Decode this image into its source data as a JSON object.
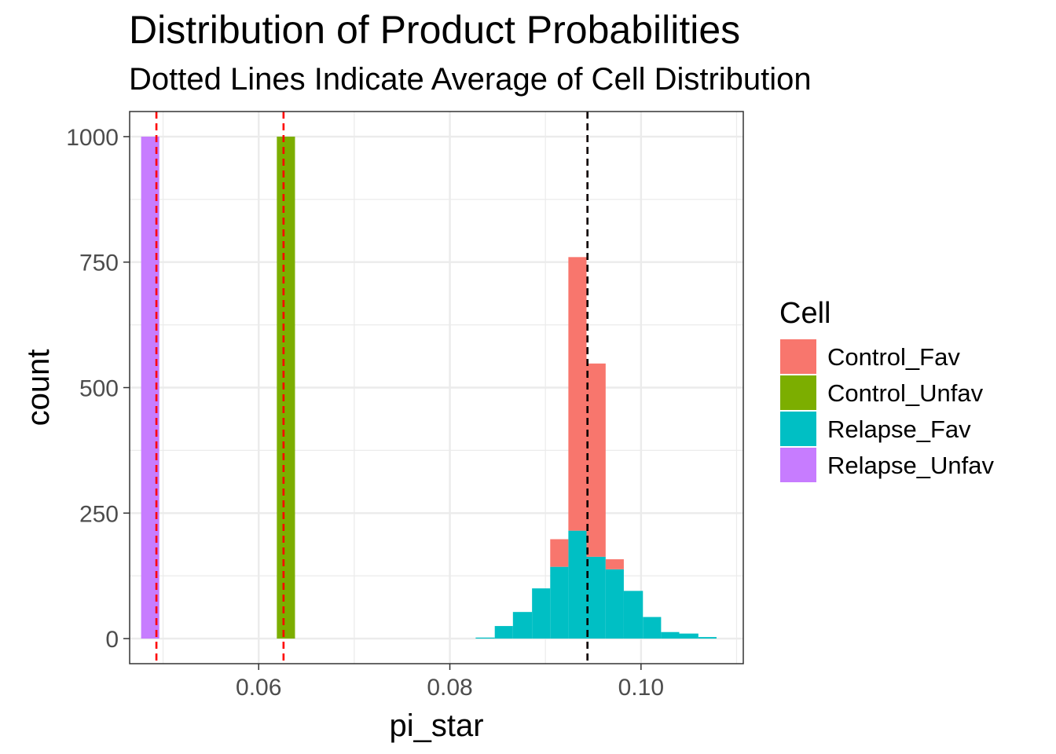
{
  "chart_data": {
    "type": "bar",
    "subtype": "stacked-histogram",
    "title": "Distribution of Product Probabilities",
    "subtitle": "Dotted Lines Indicate Average of Cell Distribution",
    "xlabel": "pi_star",
    "ylabel": "count",
    "xlim": [
      0.0465,
      0.1107
    ],
    "ylim": [
      -50,
      1050
    ],
    "x_ticks": [
      0.06,
      0.08,
      0.1
    ],
    "x_tick_labels": [
      "0.06",
      "0.08",
      "0.10"
    ],
    "y_ticks": [
      0,
      250,
      500,
      750,
      1000
    ],
    "y_tick_labels": [
      "0",
      "250",
      "500",
      "750",
      "1000"
    ],
    "grid": true,
    "legend_position": "right",
    "legend_title": "Cell",
    "series": [
      {
        "name": "Control_Fav",
        "color": "#F8766D",
        "bins": [
          {
            "x0": 0.0905,
            "x1": 0.0924,
            "y": 55
          },
          {
            "x0": 0.0924,
            "x1": 0.0943,
            "y": 545
          },
          {
            "x0": 0.0943,
            "x1": 0.0963,
            "y": 385
          },
          {
            "x0": 0.0963,
            "x1": 0.0982,
            "y": 20
          }
        ]
      },
      {
        "name": "Control_Unfav",
        "color": "#7CAE00",
        "bins": [
          {
            "x0": 0.0619,
            "x1": 0.0638,
            "y": 1000
          }
        ]
      },
      {
        "name": "Relapse_Fav",
        "color": "#00BFC4",
        "bins": [
          {
            "x0": 0.0827,
            "x1": 0.0847,
            "y": 2
          },
          {
            "x0": 0.0847,
            "x1": 0.0866,
            "y": 25
          },
          {
            "x0": 0.0866,
            "x1": 0.0886,
            "y": 53
          },
          {
            "x0": 0.0886,
            "x1": 0.0905,
            "y": 100
          },
          {
            "x0": 0.0905,
            "x1": 0.0924,
            "y": 143
          },
          {
            "x0": 0.0924,
            "x1": 0.0943,
            "y": 215
          },
          {
            "x0": 0.0943,
            "x1": 0.0963,
            "y": 163
          },
          {
            "x0": 0.0963,
            "x1": 0.0982,
            "y": 138
          },
          {
            "x0": 0.0982,
            "x1": 0.1002,
            "y": 95
          },
          {
            "x0": 0.1002,
            "x1": 0.1021,
            "y": 43
          },
          {
            "x0": 0.1021,
            "x1": 0.104,
            "y": 13
          },
          {
            "x0": 0.104,
            "x1": 0.106,
            "y": 10
          },
          {
            "x0": 0.106,
            "x1": 0.1079,
            "y": 3
          }
        ]
      },
      {
        "name": "Relapse_Unfav",
        "color": "#C77CFF",
        "bins": [
          {
            "x0": 0.0477,
            "x1": 0.0496,
            "y": 1000
          }
        ]
      }
    ],
    "stack_order": [
      "Relapse_Fav",
      "Control_Fav",
      "Control_Unfav",
      "Relapse_Unfav"
    ],
    "reference_lines": [
      {
        "x": 0.0493,
        "color": "#FF0000",
        "style": "dashed"
      },
      {
        "x": 0.0626,
        "color": "#FF0000",
        "style": "dashed"
      },
      {
        "x": 0.0944,
        "color": "#FF0000",
        "style": "dashed"
      },
      {
        "x": 0.0944,
        "color": "#000000",
        "style": "dashed"
      }
    ]
  }
}
